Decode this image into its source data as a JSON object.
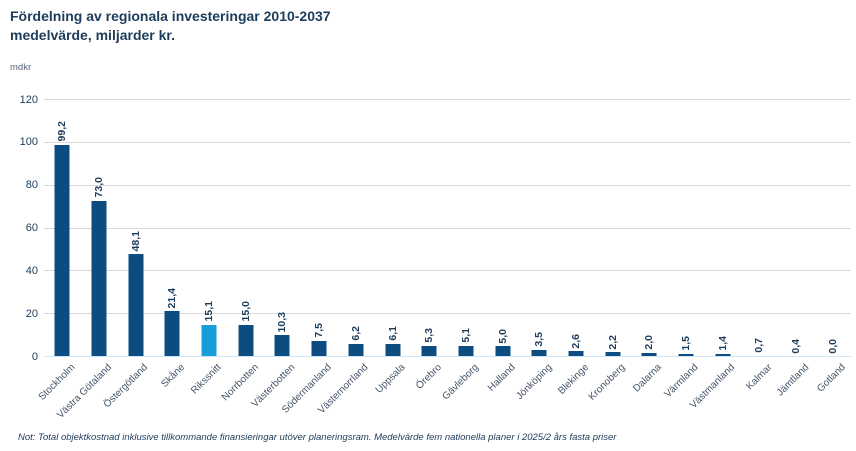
{
  "page": {
    "title_line1": "Fördelning av regionala investeringar 2010-2037",
    "title_line2": "medelvärde, miljarder kr.",
    "unit_label": "mdkr",
    "footnote": "Not: Total objektkostnad inklusive tillkommande finansieringar utöver planeringsram. Medelvärde fem nationella planer i 2025/2 års fasta priser"
  },
  "colors": {
    "bar": "#0d4c80",
    "bar_highlight": "#199dd9",
    "title_text": "#1d3c5a",
    "axis_tick_text": "#1d3c5a",
    "category_text": "#44546a",
    "gridline": "#d9d9d9",
    "baseline": "#cfe7f5"
  },
  "chart_data": {
    "type": "bar",
    "title": "Fördelning av regionala investeringar 2010-2037 medelvärde, miljarder kr.",
    "xlabel": "",
    "ylabel": "mdkr",
    "ylim": [
      0,
      120
    ],
    "y_ticks": [
      0,
      20,
      40,
      60,
      80,
      100,
      120
    ],
    "grid": "horizontal",
    "legend_position": "none",
    "categories": [
      "Stockholm",
      "Västra Götaland",
      "Östergötland",
      "Skåne",
      "Rikssnitt",
      "Norrbotten",
      "Västerbotten",
      "Södermanland",
      "Västernorrland",
      "Uppsala",
      "Örebro",
      "Gävleborg",
      "Halland",
      "Jönköping",
      "Blekinge",
      "Kronoberg",
      "Dalarna",
      "Värmland",
      "Västmanland",
      "Kalmar",
      "Jämtland",
      "Gotland"
    ],
    "values": [
      99.2,
      73.0,
      48.1,
      21.4,
      15.1,
      15.0,
      10.3,
      7.5,
      6.2,
      6.1,
      5.3,
      5.1,
      5.0,
      3.5,
      2.6,
      2.2,
      2.0,
      1.5,
      1.4,
      0.7,
      0.4,
      0.0
    ],
    "value_labels": [
      "99,2",
      "73,0",
      "48,1",
      "21,4",
      "15,1",
      "15,0",
      "10,3",
      "7,5",
      "6,2",
      "6,1",
      "5,3",
      "5,1",
      "5,0",
      "3,5",
      "2,6",
      "2,2",
      "2,0",
      "1,5",
      "1,4",
      "0,7",
      "0,4",
      "0,0"
    ],
    "highlight_category": "Rikssnitt",
    "highlight_index": 4
  }
}
